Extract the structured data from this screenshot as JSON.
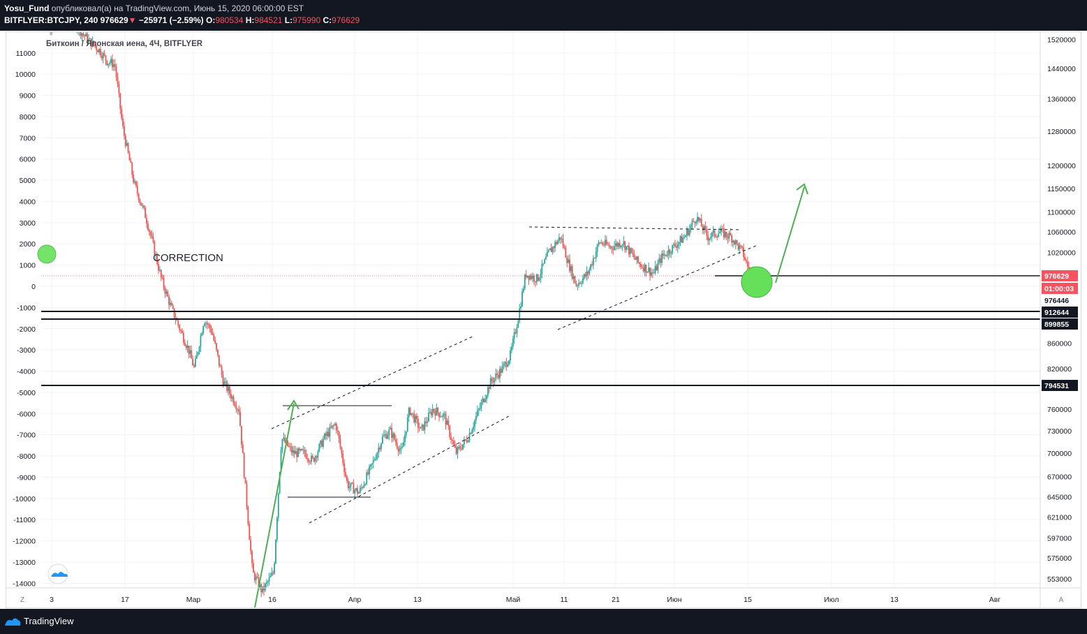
{
  "header": {
    "author": "Yosu_Fund",
    "published_text": "опубликовал(а) на TradingView.com, Июнь 15, 2020 06:00:00 EST",
    "symbol": "BITFLYER:BTCJPY, 240",
    "last": "976629",
    "change": "−25971 (−2.59%)",
    "o_label": "O:",
    "o": "980534",
    "h_label": "H:",
    "h": "984521",
    "l_label": "L:",
    "l": "975990",
    "c_label": "C:",
    "c": "976629"
  },
  "chart_title": "Биткоин / Японская иена, 4Ч, BITFLYER",
  "annotation": "CORRECTION",
  "footer": {
    "brand": "TradingView"
  },
  "corner_labels": {
    "bottom_left": "Z",
    "bottom_right": "A"
  },
  "colors": {
    "up": "#26a69a",
    "down": "#ef5350",
    "arrow": "#4caf50",
    "price_line": "#f7525f"
  },
  "chart_data": {
    "type": "candlestick",
    "title": "Биткоин / Японская иена, 4Ч, BITFLYER",
    "left_axis": {
      "ticks": [
        11000,
        10000,
        9000,
        8000,
        7000,
        6000,
        5000,
        4000,
        3000,
        2000,
        1000,
        0,
        -1000,
        -2000,
        -3000,
        -4000,
        -5000,
        -6000,
        -7000,
        -8000,
        -9000,
        -10000,
        -11000,
        -12000,
        -13000,
        -14000
      ]
    },
    "right_axis": {
      "scale": "log",
      "ticks": [
        1520000,
        1440000,
        1360000,
        1280000,
        1200000,
        1150000,
        1100000,
        1060000,
        1020000,
        860000,
        820000,
        760000,
        730000,
        700000,
        670000,
        645000,
        621000,
        597000,
        575000,
        553000
      ]
    },
    "price_labels": [
      {
        "value": "976629",
        "style": "last"
      },
      {
        "value": "01:00:03",
        "style": "countdown"
      },
      {
        "value": "976446",
        "style": "plain"
      },
      {
        "value": "912644",
        "style": "level"
      },
      {
        "value": "899855",
        "style": "level"
      },
      {
        "value": "794531",
        "style": "level"
      }
    ],
    "x_ticks": [
      "3",
      "17",
      "Мар",
      "16",
      "Апр",
      "13",
      "Май",
      "11",
      "21",
      "Июн",
      "15",
      "Июл",
      "13",
      "Авг"
    ],
    "horizontal_levels": [
      976446,
      912644,
      899855,
      794531
    ],
    "price_path": [
      [
        0,
        1570000
      ],
      [
        20,
        1560000
      ],
      [
        40,
        1560000
      ],
      [
        60,
        1590000
      ],
      [
        90,
        1560000
      ],
      [
        120,
        1520000
      ],
      [
        150,
        1490000
      ],
      [
        170,
        1460000
      ],
      [
        190,
        1450000
      ],
      [
        210,
        1290000
      ],
      [
        240,
        1160000
      ],
      [
        270,
        1090000
      ],
      [
        290,
        1030000
      ],
      [
        310,
        970000
      ],
      [
        335,
        920000
      ],
      [
        360,
        880000
      ],
      [
        380,
        850000
      ],
      [
        395,
        820000
      ],
      [
        420,
        900000
      ],
      [
        440,
        880000
      ],
      [
        470,
        800000
      ],
      [
        510,
        760000
      ],
      [
        545,
        560000
      ],
      [
        570,
        540000
      ],
      [
        600,
        560000
      ],
      [
        620,
        720000
      ],
      [
        650,
        700000
      ],
      [
        680,
        700000
      ],
      [
        700,
        690000
      ],
      [
        730,
        720000
      ],
      [
        760,
        740000
      ],
      [
        790,
        660000
      ],
      [
        820,
        650000
      ],
      [
        850,
        680000
      ],
      [
        880,
        720000
      ],
      [
        900,
        730000
      ],
      [
        930,
        700000
      ],
      [
        950,
        760000
      ],
      [
        980,
        730000
      ],
      [
        1010,
        760000
      ],
      [
        1040,
        750000
      ],
      [
        1070,
        700000
      ],
      [
        1100,
        720000
      ],
      [
        1130,
        760000
      ],
      [
        1160,
        800000
      ],
      [
        1190,
        820000
      ],
      [
        1210,
        840000
      ],
      [
        1230,
        900000
      ],
      [
        1250,
        980000
      ],
      [
        1280,
        970000
      ],
      [
        1310,
        1020000
      ],
      [
        1340,
        1050000
      ],
      [
        1360,
        1000000
      ],
      [
        1380,
        960000
      ],
      [
        1410,
        980000
      ],
      [
        1440,
        1040000
      ],
      [
        1470,
        1030000
      ],
      [
        1500,
        1040000
      ],
      [
        1520,
        1020000
      ],
      [
        1540,
        1000000
      ],
      [
        1560,
        990000
      ],
      [
        1580,
        980000
      ],
      [
        1600,
        1010000
      ],
      [
        1630,
        1030000
      ],
      [
        1660,
        1050000
      ],
      [
        1690,
        1090000
      ],
      [
        1720,
        1050000
      ],
      [
        1750,
        1060000
      ],
      [
        1780,
        1050000
      ],
      [
        1810,
        1020000
      ],
      [
        1830,
        976629
      ]
    ]
  }
}
